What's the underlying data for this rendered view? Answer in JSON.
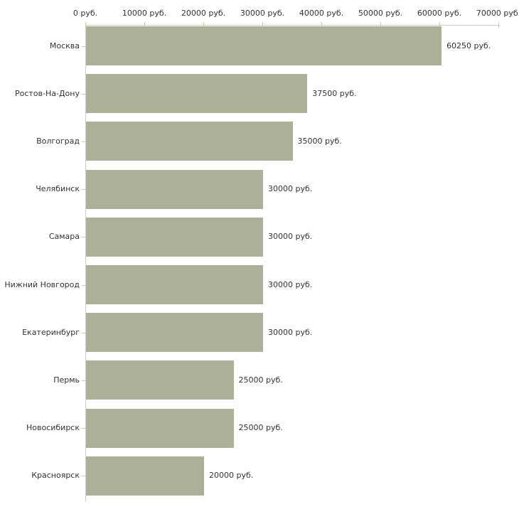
{
  "chart_data": {
    "type": "bar",
    "orientation": "horizontal",
    "title": "",
    "xlabel": "",
    "ylabel": "",
    "grid": false,
    "legend": false,
    "categories": [
      "Москва",
      "Ростов-На-Дону",
      "Волгоград",
      "Челябинск",
      "Самара",
      "Нижний Новгород",
      "Екатеринбург",
      "Пермь",
      "Новосибирск",
      "Красноярск"
    ],
    "values": [
      60250,
      37500,
      35000,
      30000,
      30000,
      30000,
      30000,
      25000,
      25000,
      20000
    ],
    "value_labels": [
      "60250 руб.",
      "37500 руб.",
      "35000 руб.",
      "30000 руб.",
      "30000 руб.",
      "30000 руб.",
      "30000 руб.",
      "25000 руб.",
      "25000 руб.",
      "20000 руб."
    ],
    "x_axis": {
      "position": "top",
      "range": [
        0,
        70000
      ],
      "tick_values": [
        0,
        10000,
        20000,
        30000,
        40000,
        50000,
        60000,
        70000
      ],
      "tick_labels": [
        "0 руб.",
        "10000 руб.",
        "20000 руб.",
        "30000 руб.",
        "40000 руб.",
        "50000 руб.",
        "60000 руб.",
        "70000 руб."
      ]
    },
    "colors": {
      "bar": "#abb197",
      "axis_line": "#cccccc",
      "tick": "#cbcb9e",
      "text": "#333333",
      "background": "#ffffff"
    }
  }
}
